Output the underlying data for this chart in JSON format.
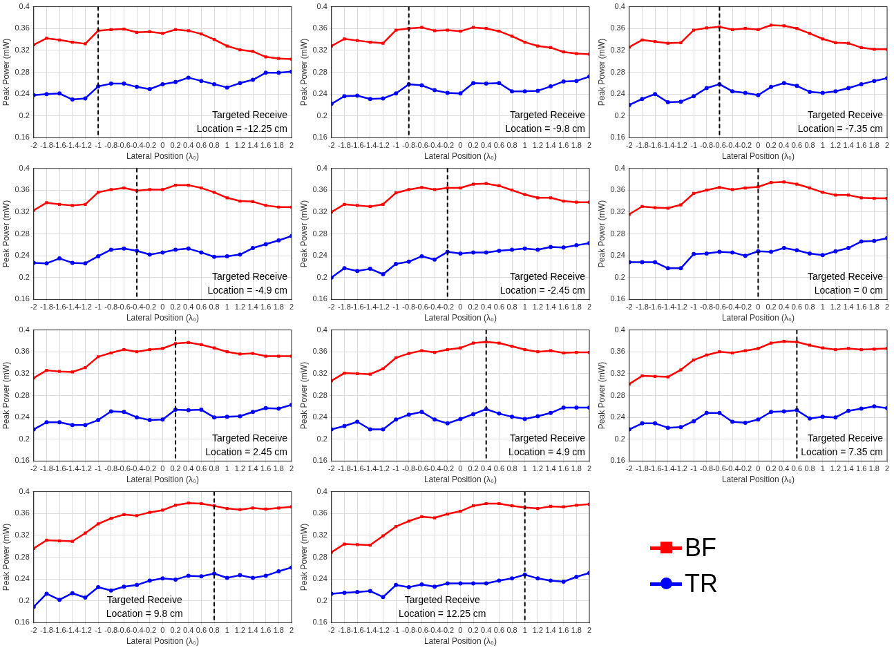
{
  "chart_data": [
    {
      "type": "line",
      "xlabel": "Lateral Position (λ₀)",
      "ylabel": "Peak Power (mW)",
      "xlim": [
        -2,
        2
      ],
      "ylim": [
        0.16,
        0.4
      ],
      "xticks": [
        -2,
        -1.8,
        -1.6,
        -1.4,
        -1.2,
        -1,
        -0.8,
        -0.6,
        -0.4,
        -0.2,
        0,
        0.2,
        0.4,
        0.6,
        0.8,
        1,
        1.2,
        1.4,
        1.6,
        1.8,
        2
      ],
      "yticks": [
        0.16,
        0.2,
        0.24,
        0.28,
        0.32,
        0.36,
        0.4
      ],
      "grid": true,
      "x": [
        -2,
        -1.8,
        -1.6,
        -1.4,
        -1.2,
        -1,
        -0.8,
        -0.6,
        -0.4,
        -0.2,
        0,
        0.2,
        0.4,
        0.6,
        0.8,
        1,
        1.2,
        1.4,
        1.6,
        1.8,
        2
      ],
      "line_style": "solid",
      "series": [
        {
          "color": "#ff0000",
          "marker": "square",
          "values": [
            0.33,
            0.342,
            0.339,
            0.335,
            0.332,
            0.356,
            0.358,
            0.359,
            0.353,
            0.354,
            0.351,
            0.358,
            0.356,
            0.35,
            0.34,
            0.328,
            0.321,
            0.318,
            0.308,
            0.305,
            0.304
          ]
        },
        {
          "color": "#0000ff",
          "marker": "circle",
          "values": [
            0.238,
            0.24,
            0.241,
            0.23,
            0.232,
            0.254,
            0.259,
            0.259,
            0.253,
            0.249,
            0.258,
            0.262,
            0.27,
            0.264,
            0.258,
            0.252,
            0.26,
            0.266,
            0.279,
            0.279,
            0.281
          ]
        }
      ],
      "ref_lines": [
        {
          "axis": "x",
          "value": -1,
          "color": "#000000",
          "line_style": "dashed"
        }
      ],
      "annotations": [
        "Targeted Receive",
        "Location = -12.25 cm"
      ]
    },
    {
      "type": "line",
      "xlabel": "Lateral Position (λ₀)",
      "ylabel": "Peak Power (mW)",
      "xlim": [
        -2,
        2
      ],
      "ylim": [
        0.16,
        0.4
      ],
      "xticks": [
        -2,
        -1.8,
        -1.6,
        -1.4,
        -1.2,
        -1,
        -0.8,
        -0.6,
        -0.4,
        -0.2,
        0,
        0.2,
        0.4,
        0.6,
        0.8,
        1,
        1.2,
        1.4,
        1.6,
        1.8,
        2
      ],
      "yticks": [
        0.16,
        0.2,
        0.24,
        0.28,
        0.32,
        0.36,
        0.4
      ],
      "grid": true,
      "x": [
        -2,
        -1.8,
        -1.6,
        -1.4,
        -1.2,
        -1,
        -0.8,
        -0.6,
        -0.4,
        -0.2,
        0,
        0.2,
        0.4,
        0.6,
        0.8,
        1,
        1.2,
        1.4,
        1.6,
        1.8,
        2
      ],
      "line_style": "solid",
      "series": [
        {
          "color": "#ff0000",
          "marker": "square",
          "values": [
            0.328,
            0.341,
            0.338,
            0.335,
            0.333,
            0.357,
            0.36,
            0.362,
            0.356,
            0.357,
            0.355,
            0.362,
            0.36,
            0.355,
            0.346,
            0.335,
            0.328,
            0.325,
            0.317,
            0.314,
            0.313
          ]
        },
        {
          "color": "#0000ff",
          "marker": "circle",
          "values": [
            0.222,
            0.236,
            0.237,
            0.231,
            0.232,
            0.241,
            0.258,
            0.256,
            0.247,
            0.242,
            0.241,
            0.26,
            0.259,
            0.26,
            0.245,
            0.245,
            0.246,
            0.254,
            0.263,
            0.264,
            0.272
          ]
        }
      ],
      "ref_lines": [
        {
          "axis": "x",
          "value": -0.8,
          "color": "#000000",
          "line_style": "dashed"
        }
      ],
      "annotations": [
        "Targeted Receive",
        "Location = -9.8 cm"
      ]
    },
    {
      "type": "line",
      "xlabel": "Lateral Position (λ₀)",
      "ylabel": "Peak Power (mW)",
      "xlim": [
        -2,
        2
      ],
      "ylim": [
        0.16,
        0.4
      ],
      "xticks": [
        -2,
        -1.8,
        -1.6,
        -1.4,
        -1.2,
        -1,
        -0.8,
        -0.6,
        -0.4,
        -0.2,
        0,
        0.2,
        0.4,
        0.6,
        0.8,
        1,
        1.2,
        1.4,
        1.6,
        1.8,
        2
      ],
      "yticks": [
        0.16,
        0.2,
        0.24,
        0.28,
        0.32,
        0.36,
        0.4
      ],
      "grid": true,
      "x": [
        -2,
        -1.8,
        -1.6,
        -1.4,
        -1.2,
        -1,
        -0.8,
        -0.6,
        -0.4,
        -0.2,
        0,
        0.2,
        0.4,
        0.6,
        0.8,
        1,
        1.2,
        1.4,
        1.6,
        1.8,
        2
      ],
      "line_style": "solid",
      "series": [
        {
          "color": "#ff0000",
          "marker": "square",
          "values": [
            0.326,
            0.339,
            0.336,
            0.333,
            0.334,
            0.357,
            0.361,
            0.363,
            0.358,
            0.36,
            0.358,
            0.366,
            0.365,
            0.36,
            0.351,
            0.341,
            0.334,
            0.333,
            0.325,
            0.322,
            0.322
          ]
        },
        {
          "color": "#0000ff",
          "marker": "circle",
          "values": [
            0.22,
            0.231,
            0.24,
            0.225,
            0.226,
            0.236,
            0.251,
            0.258,
            0.245,
            0.242,
            0.238,
            0.253,
            0.26,
            0.255,
            0.244,
            0.242,
            0.245,
            0.251,
            0.258,
            0.264,
            0.269
          ]
        }
      ],
      "ref_lines": [
        {
          "axis": "x",
          "value": -0.6,
          "color": "#000000",
          "line_style": "dashed"
        }
      ],
      "annotations": [
        "Targeted Receive",
        "Location = -7.35 cm"
      ]
    },
    {
      "type": "line",
      "xlabel": "Lateral Position (λ₀)",
      "ylabel": "Peak Power (mW)",
      "xlim": [
        -2,
        2
      ],
      "ylim": [
        0.16,
        0.4
      ],
      "xticks": [
        -2,
        -1.8,
        -1.6,
        -1.4,
        -1.2,
        -1,
        -0.8,
        -0.6,
        -0.4,
        -0.2,
        0,
        0.2,
        0.4,
        0.6,
        0.8,
        1,
        1.2,
        1.4,
        1.6,
        1.8,
        2
      ],
      "yticks": [
        0.16,
        0.2,
        0.24,
        0.28,
        0.32,
        0.36,
        0.4
      ],
      "grid": true,
      "x": [
        -2,
        -1.8,
        -1.6,
        -1.4,
        -1.2,
        -1,
        -0.8,
        -0.6,
        -0.4,
        -0.2,
        0,
        0.2,
        0.4,
        0.6,
        0.8,
        1,
        1.2,
        1.4,
        1.6,
        1.8,
        2
      ],
      "line_style": "solid",
      "series": [
        {
          "color": "#ff0000",
          "marker": "square",
          "values": [
            0.323,
            0.337,
            0.334,
            0.332,
            0.334,
            0.356,
            0.361,
            0.364,
            0.359,
            0.361,
            0.361,
            0.369,
            0.369,
            0.364,
            0.356,
            0.346,
            0.34,
            0.339,
            0.332,
            0.329,
            0.329
          ]
        },
        {
          "color": "#0000ff",
          "marker": "circle",
          "values": [
            0.227,
            0.226,
            0.235,
            0.227,
            0.226,
            0.239,
            0.251,
            0.253,
            0.249,
            0.242,
            0.246,
            0.251,
            0.253,
            0.246,
            0.238,
            0.239,
            0.242,
            0.254,
            0.261,
            0.268,
            0.276
          ]
        }
      ],
      "ref_lines": [
        {
          "axis": "x",
          "value": -0.4,
          "color": "#000000",
          "line_style": "dashed"
        }
      ],
      "annotations": [
        "Targeted Receive",
        "Location = -4.9 cm"
      ]
    },
    {
      "type": "line",
      "xlabel": "Lateral Position (λ₀)",
      "ylabel": "Peak Power (mW)",
      "xlim": [
        -2,
        2
      ],
      "ylim": [
        0.16,
        0.4
      ],
      "xticks": [
        -2,
        -1.8,
        -1.6,
        -1.4,
        -1.2,
        -1,
        -0.8,
        -0.6,
        -0.4,
        -0.2,
        0,
        0.2,
        0.4,
        0.6,
        0.8,
        1,
        1.2,
        1.4,
        1.6,
        1.8,
        2
      ],
      "yticks": [
        0.16,
        0.2,
        0.24,
        0.28,
        0.32,
        0.36,
        0.4
      ],
      "grid": true,
      "x": [
        -2,
        -1.8,
        -1.6,
        -1.4,
        -1.2,
        -1,
        -0.8,
        -0.6,
        -0.4,
        -0.2,
        0,
        0.2,
        0.4,
        0.6,
        0.8,
        1,
        1.2,
        1.4,
        1.6,
        1.8,
        2
      ],
      "line_style": "solid",
      "series": [
        {
          "color": "#ff0000",
          "marker": "square",
          "values": [
            0.32,
            0.334,
            0.332,
            0.33,
            0.334,
            0.355,
            0.361,
            0.365,
            0.361,
            0.364,
            0.364,
            0.371,
            0.372,
            0.368,
            0.36,
            0.352,
            0.346,
            0.346,
            0.34,
            0.338,
            0.338
          ]
        },
        {
          "color": "#0000ff",
          "marker": "circle",
          "values": [
            0.2,
            0.217,
            0.212,
            0.216,
            0.206,
            0.225,
            0.229,
            0.239,
            0.233,
            0.247,
            0.244,
            0.246,
            0.246,
            0.249,
            0.251,
            0.253,
            0.251,
            0.256,
            0.255,
            0.259,
            0.263
          ]
        }
      ],
      "ref_lines": [
        {
          "axis": "x",
          "value": -0.2,
          "color": "#000000",
          "line_style": "dashed"
        }
      ],
      "annotations": [
        "Targeted Receive",
        "Location = -2.45 cm"
      ]
    },
    {
      "type": "line",
      "xlabel": "Lateral Position (λ₀)",
      "ylabel": "Peak Power (mW)",
      "xlim": [
        -2,
        2
      ],
      "ylim": [
        0.16,
        0.4
      ],
      "xticks": [
        -2,
        -1.8,
        -1.6,
        -1.4,
        -1.2,
        -1,
        -0.8,
        -0.6,
        -0.4,
        -0.2,
        0,
        0.2,
        0.4,
        0.6,
        0.8,
        1,
        1.2,
        1.4,
        1.6,
        1.8,
        2
      ],
      "yticks": [
        0.16,
        0.2,
        0.24,
        0.28,
        0.32,
        0.36,
        0.4
      ],
      "grid": true,
      "x": [
        -2,
        -1.8,
        -1.6,
        -1.4,
        -1.2,
        -1,
        -0.8,
        -0.6,
        -0.4,
        -0.2,
        0,
        0.2,
        0.4,
        0.6,
        0.8,
        1,
        1.2,
        1.4,
        1.6,
        1.8,
        2
      ],
      "line_style": "solid",
      "series": [
        {
          "color": "#ff0000",
          "marker": "square",
          "values": [
            0.316,
            0.33,
            0.328,
            0.327,
            0.333,
            0.354,
            0.36,
            0.365,
            0.361,
            0.364,
            0.366,
            0.374,
            0.375,
            0.371,
            0.364,
            0.356,
            0.351,
            0.351,
            0.346,
            0.345,
            0.345
          ]
        },
        {
          "color": "#0000ff",
          "marker": "circle",
          "values": [
            0.228,
            0.228,
            0.228,
            0.217,
            0.217,
            0.243,
            0.244,
            0.247,
            0.246,
            0.24,
            0.248,
            0.247,
            0.254,
            0.25,
            0.244,
            0.241,
            0.248,
            0.254,
            0.266,
            0.267,
            0.272
          ]
        }
      ],
      "ref_lines": [
        {
          "axis": "x",
          "value": 0,
          "color": "#000000",
          "line_style": "dashed"
        }
      ],
      "annotations": [
        "Targeted Receive",
        "Location = 0 cm"
      ]
    },
    {
      "type": "line",
      "xlabel": "Lateral Position (λ₀)",
      "ylabel": "Peak Power (mW)",
      "xlim": [
        -2,
        2
      ],
      "ylim": [
        0.16,
        0.4
      ],
      "xticks": [
        -2,
        -1.8,
        -1.6,
        -1.4,
        -1.2,
        -1,
        -0.8,
        -0.6,
        -0.4,
        -0.2,
        0,
        0.2,
        0.4,
        0.6,
        0.8,
        1,
        1.2,
        1.4,
        1.6,
        1.8,
        2
      ],
      "yticks": [
        0.16,
        0.2,
        0.24,
        0.28,
        0.32,
        0.36,
        0.4
      ],
      "grid": true,
      "x": [
        -2,
        -1.8,
        -1.6,
        -1.4,
        -1.2,
        -1,
        -0.8,
        -0.6,
        -0.4,
        -0.2,
        0,
        0.2,
        0.4,
        0.6,
        0.8,
        1,
        1.2,
        1.4,
        1.6,
        1.8,
        2
      ],
      "line_style": "solid",
      "series": [
        {
          "color": "#ff0000",
          "marker": "square",
          "values": [
            0.312,
            0.326,
            0.324,
            0.323,
            0.331,
            0.351,
            0.358,
            0.364,
            0.36,
            0.364,
            0.366,
            0.375,
            0.377,
            0.373,
            0.367,
            0.36,
            0.356,
            0.357,
            0.352,
            0.352,
            0.352
          ]
        },
        {
          "color": "#0000ff",
          "marker": "circle",
          "values": [
            0.218,
            0.231,
            0.231,
            0.226,
            0.226,
            0.235,
            0.251,
            0.25,
            0.24,
            0.235,
            0.236,
            0.254,
            0.253,
            0.254,
            0.24,
            0.241,
            0.242,
            0.25,
            0.257,
            0.256,
            0.263
          ]
        }
      ],
      "ref_lines": [
        {
          "axis": "x",
          "value": 0.2,
          "color": "#000000",
          "line_style": "dashed"
        }
      ],
      "annotations": [
        "Targeted Receive",
        "Location = 2.45 cm"
      ]
    },
    {
      "type": "line",
      "xlabel": "Lateral Position (λ₀)",
      "ylabel": "Peak Power (mW)",
      "xlim": [
        -2,
        2
      ],
      "ylim": [
        0.16,
        0.4
      ],
      "xticks": [
        -2,
        -1.8,
        -1.6,
        -1.4,
        -1.2,
        -1,
        -0.8,
        -0.6,
        -0.4,
        -0.2,
        0,
        0.2,
        0.4,
        0.6,
        0.8,
        1,
        1.2,
        1.4,
        1.6,
        1.8,
        2
      ],
      "yticks": [
        0.16,
        0.2,
        0.24,
        0.28,
        0.32,
        0.36,
        0.4
      ],
      "grid": true,
      "x": [
        -2,
        -1.8,
        -1.6,
        -1.4,
        -1.2,
        -1,
        -0.8,
        -0.6,
        -0.4,
        -0.2,
        0,
        0.2,
        0.4,
        0.6,
        0.8,
        1,
        1.2,
        1.4,
        1.6,
        1.8,
        2
      ],
      "line_style": "solid",
      "series": [
        {
          "color": "#ff0000",
          "marker": "square",
          "values": [
            0.307,
            0.321,
            0.32,
            0.319,
            0.329,
            0.349,
            0.357,
            0.362,
            0.359,
            0.364,
            0.367,
            0.376,
            0.378,
            0.376,
            0.37,
            0.364,
            0.36,
            0.362,
            0.358,
            0.359,
            0.359
          ]
        },
        {
          "color": "#0000ff",
          "marker": "circle",
          "values": [
            0.218,
            0.224,
            0.232,
            0.218,
            0.218,
            0.236,
            0.245,
            0.25,
            0.236,
            0.229,
            0.237,
            0.246,
            0.255,
            0.247,
            0.241,
            0.237,
            0.242,
            0.248,
            0.258,
            0.258,
            0.258
          ]
        }
      ],
      "ref_lines": [
        {
          "axis": "x",
          "value": 0.4,
          "color": "#000000",
          "line_style": "dashed"
        }
      ],
      "annotations": [
        "Targeted Receive",
        "Location = 4.9 cm"
      ]
    },
    {
      "type": "line",
      "xlabel": "Lateral Position (λ₀)",
      "ylabel": "Peak Power (mW)",
      "xlim": [
        -2,
        2
      ],
      "ylim": [
        0.16,
        0.4
      ],
      "xticks": [
        -2,
        -1.8,
        -1.6,
        -1.4,
        -1.2,
        -1,
        -0.8,
        -0.6,
        -0.4,
        -0.2,
        0,
        0.2,
        0.4,
        0.6,
        0.8,
        1,
        1.2,
        1.4,
        1.6,
        1.8,
        2
      ],
      "yticks": [
        0.16,
        0.2,
        0.24,
        0.28,
        0.32,
        0.36,
        0.4
      ],
      "grid": true,
      "x": [
        -2,
        -1.8,
        -1.6,
        -1.4,
        -1.2,
        -1,
        -0.8,
        -0.6,
        -0.4,
        -0.2,
        0,
        0.2,
        0.4,
        0.6,
        0.8,
        1,
        1.2,
        1.4,
        1.6,
        1.8,
        2
      ],
      "line_style": "solid",
      "series": [
        {
          "color": "#ff0000",
          "marker": "square",
          "values": [
            0.301,
            0.316,
            0.315,
            0.314,
            0.327,
            0.345,
            0.354,
            0.36,
            0.358,
            0.362,
            0.366,
            0.376,
            0.379,
            0.378,
            0.372,
            0.367,
            0.364,
            0.366,
            0.364,
            0.365,
            0.366
          ]
        },
        {
          "color": "#0000ff",
          "marker": "circle",
          "values": [
            0.218,
            0.229,
            0.229,
            0.221,
            0.222,
            0.233,
            0.248,
            0.248,
            0.232,
            0.23,
            0.236,
            0.25,
            0.251,
            0.253,
            0.238,
            0.241,
            0.24,
            0.252,
            0.256,
            0.26,
            0.257
          ]
        }
      ],
      "ref_lines": [
        {
          "axis": "x",
          "value": 0.6,
          "color": "#000000",
          "line_style": "dashed"
        }
      ],
      "annotations": [
        "Targeted Receive",
        "Location = 7.35 cm"
      ]
    },
    {
      "type": "line",
      "xlabel": "Lateral Position (λ₀)",
      "ylabel": "Peak Power (mW)",
      "xlim": [
        -2,
        2
      ],
      "ylim": [
        0.16,
        0.4
      ],
      "xticks": [
        -2,
        -1.8,
        -1.6,
        -1.4,
        -1.2,
        -1,
        -0.8,
        -0.6,
        -0.4,
        -0.2,
        0,
        0.2,
        0.4,
        0.6,
        0.8,
        1,
        1.2,
        1.4,
        1.6,
        1.8,
        2
      ],
      "yticks": [
        0.16,
        0.2,
        0.24,
        0.28,
        0.32,
        0.36,
        0.4
      ],
      "grid": true,
      "x": [
        -2,
        -1.8,
        -1.6,
        -1.4,
        -1.2,
        -1,
        -0.8,
        -0.6,
        -0.4,
        -0.2,
        0,
        0.2,
        0.4,
        0.6,
        0.8,
        1,
        1.2,
        1.4,
        1.6,
        1.8,
        2
      ],
      "line_style": "solid",
      "series": [
        {
          "color": "#ff0000",
          "marker": "square",
          "values": [
            0.296,
            0.311,
            0.31,
            0.309,
            0.324,
            0.341,
            0.351,
            0.358,
            0.356,
            0.362,
            0.366,
            0.375,
            0.379,
            0.378,
            0.374,
            0.369,
            0.367,
            0.37,
            0.368,
            0.37,
            0.372
          ]
        },
        {
          "color": "#0000ff",
          "marker": "circle",
          "values": [
            0.189,
            0.213,
            0.202,
            0.214,
            0.206,
            0.225,
            0.219,
            0.226,
            0.229,
            0.237,
            0.241,
            0.239,
            0.246,
            0.245,
            0.25,
            0.242,
            0.247,
            0.242,
            0.246,
            0.254,
            0.261
          ]
        }
      ],
      "ref_lines": [
        {
          "axis": "x",
          "value": 0.8,
          "color": "#000000",
          "line_style": "dashed"
        }
      ],
      "annotations": [
        "Targeted Receive",
        "Location = 9.8 cm"
      ]
    },
    {
      "type": "line",
      "xlabel": "Lateral Position (λ₀)",
      "ylabel": "Peak Power (mW)",
      "xlim": [
        -2,
        2
      ],
      "ylim": [
        0.16,
        0.4
      ],
      "xticks": [
        -2,
        -1.8,
        -1.6,
        -1.4,
        -1.2,
        -1,
        -0.8,
        -0.6,
        -0.4,
        -0.2,
        0,
        0.2,
        0.4,
        0.6,
        0.8,
        1,
        1.2,
        1.4,
        1.6,
        1.8,
        2
      ],
      "yticks": [
        0.16,
        0.2,
        0.24,
        0.28,
        0.32,
        0.36,
        0.4
      ],
      "grid": true,
      "x": [
        -2,
        -1.8,
        -1.6,
        -1.4,
        -1.2,
        -1,
        -0.8,
        -0.6,
        -0.4,
        -0.2,
        0,
        0.2,
        0.4,
        0.6,
        0.8,
        1,
        1.2,
        1.4,
        1.6,
        1.8,
        2
      ],
      "line_style": "solid",
      "legend": "right",
      "series": [
        {
          "name": "BF",
          "color": "#ff0000",
          "marker": "square",
          "values": [
            0.289,
            0.304,
            0.303,
            0.302,
            0.319,
            0.336,
            0.346,
            0.354,
            0.352,
            0.359,
            0.364,
            0.374,
            0.378,
            0.378,
            0.374,
            0.371,
            0.369,
            0.373,
            0.372,
            0.375,
            0.377
          ]
        },
        {
          "name": "TR",
          "color": "#0000ff",
          "marker": "circle",
          "values": [
            0.213,
            0.215,
            0.216,
            0.218,
            0.207,
            0.229,
            0.225,
            0.23,
            0.226,
            0.232,
            0.232,
            0.232,
            0.232,
            0.237,
            0.241,
            0.248,
            0.241,
            0.237,
            0.235,
            0.244,
            0.251
          ]
        }
      ],
      "ref_lines": [
        {
          "axis": "x",
          "value": 1,
          "color": "#000000",
          "line_style": "dashed"
        }
      ],
      "annotations": [
        "Targeted Receive",
        "Location = 12.25 cm"
      ]
    }
  ]
}
